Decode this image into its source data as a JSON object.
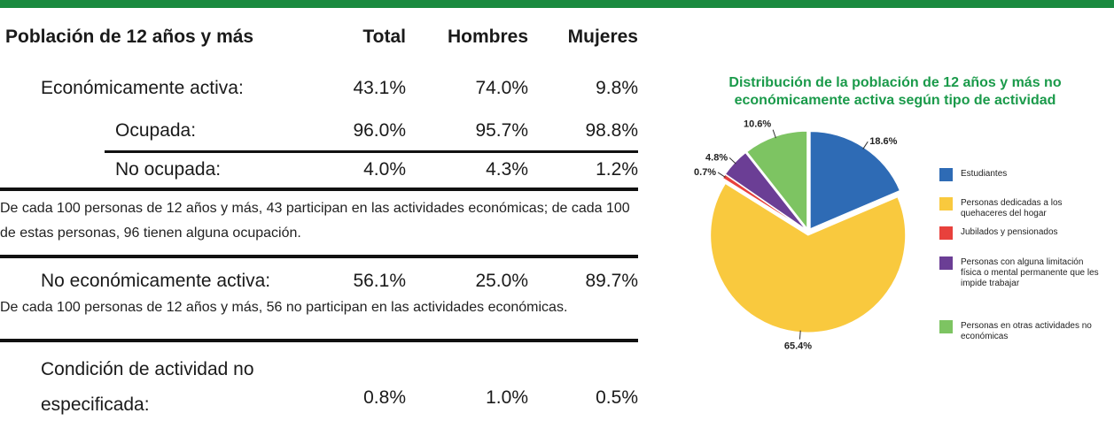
{
  "table": {
    "header": [
      "Población de 12 años y más",
      "Total",
      "Hombres",
      "Mujeres"
    ],
    "rows": [
      [
        "Económicamente activa:",
        "43.1%",
        "74.0%",
        "9.8%"
      ],
      [
        "Ocupada:",
        "96.0%",
        "95.7%",
        "98.8%"
      ],
      [
        "No ocupada:",
        "4.0%",
        "4.3%",
        "1.2%"
      ],
      [
        "No económicamente activa:",
        "56.1%",
        "25.0%",
        "89.7%"
      ],
      [
        "Condición de actividad no especificada:",
        "0.8%",
        "1.0%",
        "0.5%"
      ]
    ]
  },
  "notes": [
    "De cada 100 personas de 12 años y más, 43 participan en las actividades económicas; de cada 100 de estas personas, 96 tienen alguna ocupación.",
    "De cada 100 personas de 12 años y más, 56 no participan en las actividades económicas."
  ],
  "chart_data": {
    "type": "pie",
    "title": "Distribución de la población de 12 años y más no económicamente activa según tipo de actividad",
    "categories": [
      "Estudiantes",
      "Personas dedicadas a los quehaceres del hogar",
      "Jubilados y pensionados",
      "Personas con alguna limitación física o mental permanente que les impide trabajar",
      "Personas en otras actividades no económicas"
    ],
    "values": [
      18.6,
      65.4,
      0.7,
      4.8,
      10.6
    ],
    "value_labels": [
      "18.6%",
      "65.4%",
      "0.7%",
      "4.8%",
      "10.6%"
    ],
    "colors": [
      "#2e6bb5",
      "#f9c93e",
      "#e8413c",
      "#6b3e95",
      "#7dc462"
    ]
  }
}
